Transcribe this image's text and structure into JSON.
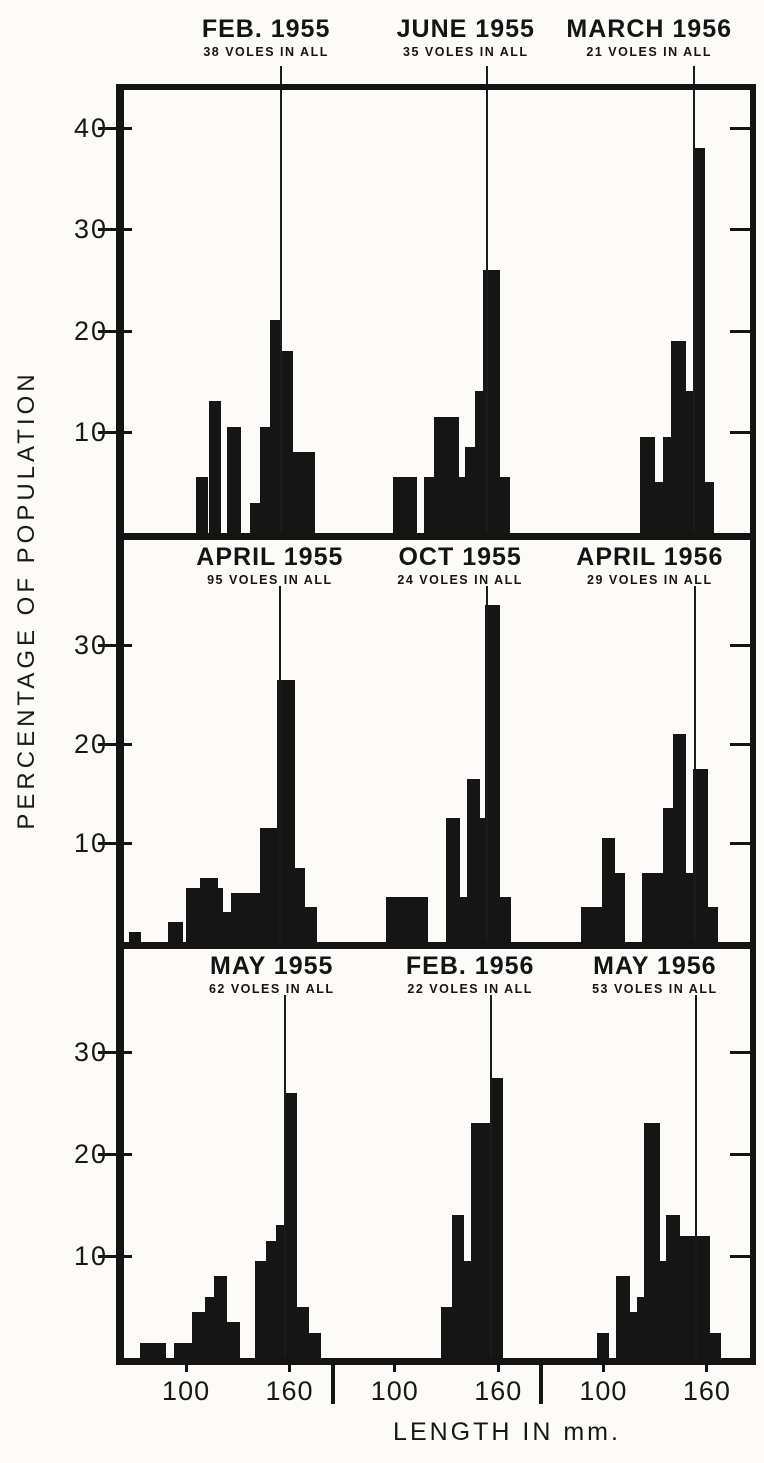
{
  "chart_data": {
    "type": "bar",
    "ylabel": "PERCENTAGE OF POPULATION",
    "xlabel": "LENGTH IN mm.",
    "x_ticks_mm": [
      100,
      160
    ],
    "panel_mm_range": [
      64,
      185
    ],
    "bar_note": "bars are [from_mm, to_mm, percent_of_population]",
    "rows": [
      {
        "y_ticks": [
          10,
          20,
          30,
          40
        ],
        "panels": [
          {
            "title": "FEB. 1955",
            "subtitle": "38 VOLES IN ALL",
            "n_voles": 38,
            "mean_line_mm": 154.5,
            "header_center_frac": 0.227,
            "bars": [
              [
                106,
                113,
                5.5
              ],
              [
                113,
                120,
                13
              ],
              [
                124,
                132,
                10.5
              ],
              [
                137,
                143,
                3
              ],
              [
                143,
                148.5,
                10.5
              ],
              [
                148.5,
                155,
                21
              ],
              [
                155,
                162,
                18
              ],
              [
                162,
                174.5,
                8
              ]
            ]
          },
          {
            "title": "JUNE 1955",
            "subtitle": "35 VOLES IN ALL",
            "n_voles": 35,
            "mean_line_mm": 153,
            "header_center_frac": 0.546,
            "bars": [
              [
                99,
                113,
                5.5
              ],
              [
                117,
                122.5,
                5.5
              ],
              [
                122.5,
                137,
                11.5
              ],
              [
                137,
                141,
                5.5
              ],
              [
                141,
                146.5,
                8.5
              ],
              [
                146.5,
                151,
                14
              ],
              [
                151,
                161,
                26
              ],
              [
                161,
                167,
                5.5
              ]
            ]
          },
          {
            "title": "MARCH 1956",
            "subtitle": "21 VOLES IN ALL",
            "n_voles": 21,
            "mean_line_mm": 152,
            "header_center_frac": 0.839,
            "bars": [
              [
                121,
                130,
                9.5
              ],
              [
                130,
                134.5,
                5
              ],
              [
                134.5,
                139,
                9.5
              ],
              [
                139,
                148,
                19
              ],
              [
                148,
                152.5,
                14
              ],
              [
                152.5,
                159,
                38
              ],
              [
                159,
                164,
                5
              ]
            ]
          }
        ]
      },
      {
        "y_ticks": [
          10,
          20,
          30
        ],
        "panels": [
          {
            "title": "APRIL 1955",
            "subtitle": "95 VOLES IN ALL",
            "n_voles": 95,
            "mean_line_mm": 154,
            "header_center_frac": 0.233,
            "bars": [
              [
                67,
                74,
                1
              ],
              [
                89.5,
                98,
                2
              ],
              [
                100,
                108,
                5.5
              ],
              [
                108,
                118.5,
                6.5
              ],
              [
                118.5,
                121.5,
                5.5
              ],
              [
                121.5,
                126,
                3
              ],
              [
                126,
                143,
                5
              ],
              [
                143,
                153,
                11.5
              ],
              [
                153,
                163,
                26.5
              ],
              [
                163,
                169,
                7.5
              ],
              [
                169,
                176,
                3.5
              ]
            ]
          },
          {
            "title": "OCT 1955",
            "subtitle": "24 VOLES IN ALL",
            "n_voles": 24,
            "mean_line_mm": 153,
            "header_center_frac": 0.537,
            "bars": [
              [
                95,
                119.5,
                4.5
              ],
              [
                130,
                138,
                12.5
              ],
              [
                138,
                142,
                4.5
              ],
              [
                142,
                149.5,
                16.5
              ],
              [
                149.5,
                152.5,
                12.5
              ],
              [
                152.5,
                161,
                34
              ],
              [
                161,
                167.5,
                4.5
              ]
            ]
          },
          {
            "title": "APRIL 1956",
            "subtitle": "29 VOLES IN ALL",
            "n_voles": 29,
            "mean_line_mm": 152.5,
            "header_center_frac": 0.84,
            "bars": [
              [
                87,
                99,
                3.5
              ],
              [
                99,
                107,
                10.5
              ],
              [
                107,
                112.5,
                7
              ],
              [
                122.5,
                134.5,
                7
              ],
              [
                134.5,
                140.5,
                13.5
              ],
              [
                140.5,
                148,
                21
              ],
              [
                148,
                152,
                7
              ],
              [
                152,
                160.5,
                17.5
              ],
              [
                160.5,
                166.5,
                3.5
              ]
            ]
          }
        ]
      },
      {
        "y_ticks": [
          10,
          20,
          30
        ],
        "panels": [
          {
            "title": "MAY 1955",
            "subtitle": "62 VOLES IN ALL",
            "n_voles": 62,
            "mean_line_mm": 157,
            "header_center_frac": 0.236,
            "bars": [
              [
                73,
                88.5,
                1.5
              ],
              [
                93,
                103.5,
                1.5
              ],
              [
                103.5,
                111,
                4.5
              ],
              [
                111,
                116,
                6
              ],
              [
                116,
                123.5,
                8
              ],
              [
                123.5,
                131.5,
                3.5
              ],
              [
                140,
                146.5,
                9.5
              ],
              [
                146.5,
                152,
                11.5
              ],
              [
                152,
                157,
                13
              ],
              [
                157,
                164.5,
                26
              ],
              [
                164.5,
                171.5,
                5
              ],
              [
                171.5,
                178,
                2.5
              ]
            ]
          },
          {
            "title": "FEB. 1956",
            "subtitle": "22 VOLES IN ALL",
            "n_voles": 22,
            "mean_line_mm": 155.5,
            "header_center_frac": 0.553,
            "bars": [
              [
                127,
                133,
                5
              ],
              [
                133,
                140,
                14
              ],
              [
                140,
                144.5,
                9.5
              ],
              [
                144.5,
                155.5,
                23
              ],
              [
                155.5,
                163,
                27.5
              ]
            ]
          },
          {
            "title": "MAY 1956",
            "subtitle": "53 VOLES IN ALL",
            "n_voles": 53,
            "mean_line_mm": 153,
            "header_center_frac": 0.848,
            "bars": [
              [
                96,
                103,
                2.5
              ],
              [
                107.5,
                115.5,
                8
              ],
              [
                115.5,
                119.5,
                4.5
              ],
              [
                119.5,
                123.5,
                6
              ],
              [
                123.5,
                133,
                23
              ],
              [
                133,
                136.5,
                9.5
              ],
              [
                136.5,
                144.5,
                14
              ],
              [
                144.5,
                162,
                12
              ],
              [
                162,
                168,
                2.5
              ]
            ]
          }
        ]
      }
    ]
  }
}
